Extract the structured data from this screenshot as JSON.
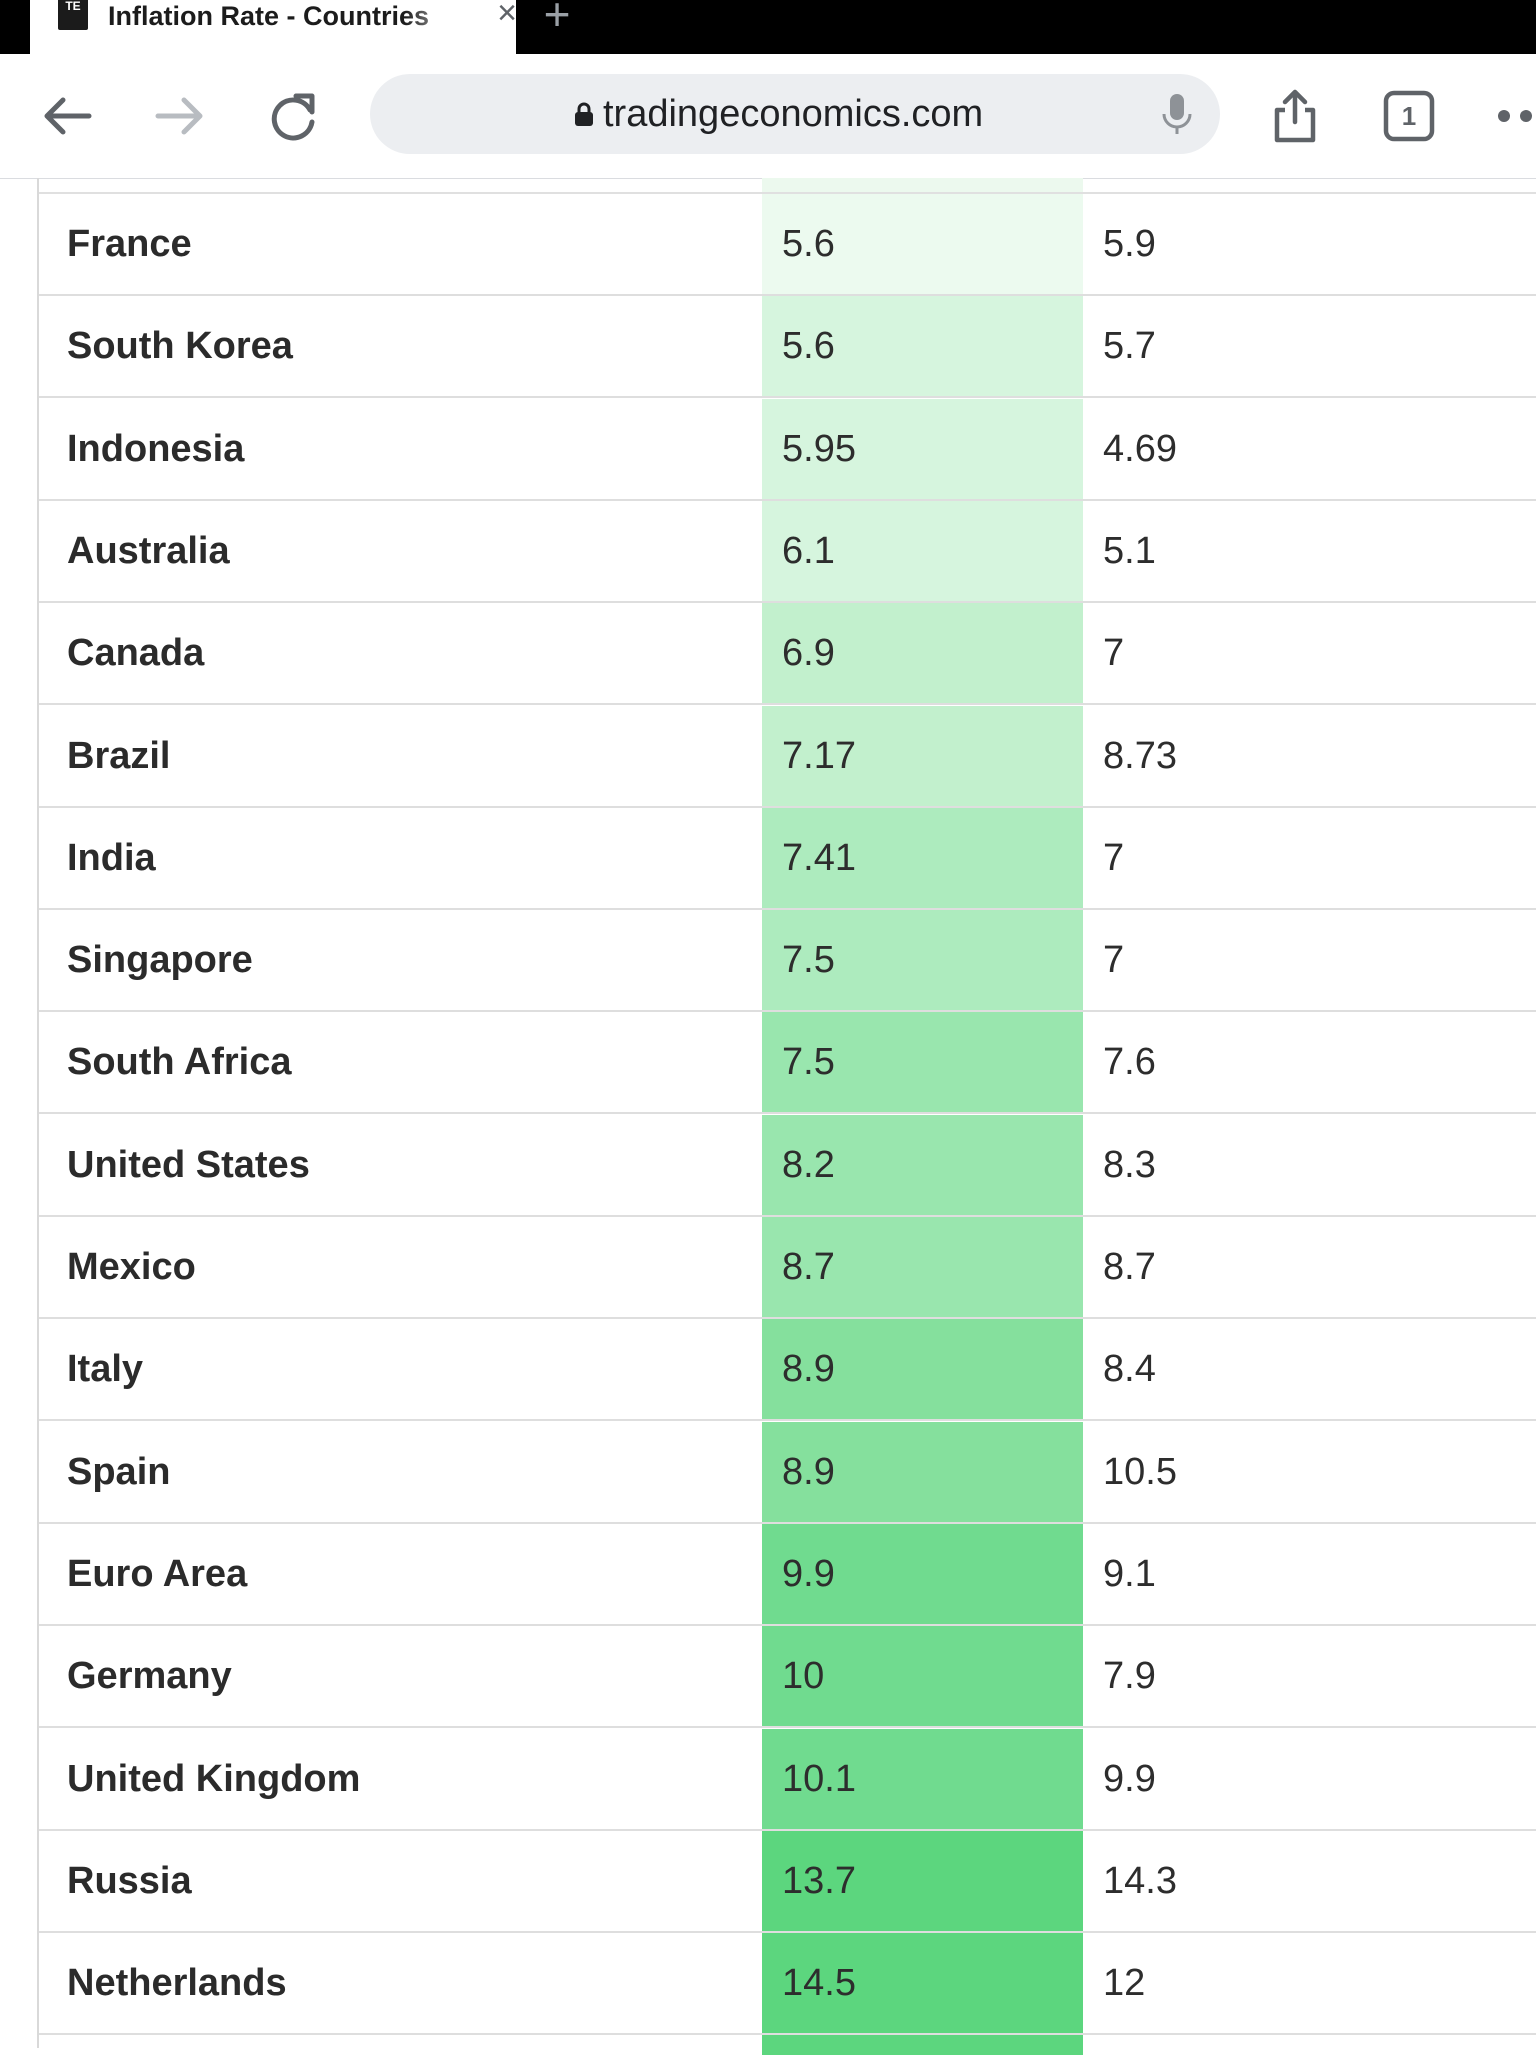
{
  "browser": {
    "tab": {
      "title": "Inflation Rate - Countries",
      "favicon_text": "TE"
    },
    "url": "tradingeconomics.com",
    "tab_count": "1"
  },
  "table": {
    "rows": [
      {
        "country": "France",
        "last": "5.6",
        "previous": "5.9",
        "color": "#ecfaef"
      },
      {
        "country": "South Korea",
        "last": "5.6",
        "previous": "5.7",
        "color": "#d6f5de"
      },
      {
        "country": "Indonesia",
        "last": "5.95",
        "previous": "4.69",
        "color": "#d6f5de"
      },
      {
        "country": "Australia",
        "last": "6.1",
        "previous": "5.1",
        "color": "#d6f5de"
      },
      {
        "country": "Canada",
        "last": "6.9",
        "previous": "7",
        "color": "#c2f0cd"
      },
      {
        "country": "Brazil",
        "last": "7.17",
        "previous": "8.73",
        "color": "#c2f0cd"
      },
      {
        "country": "India",
        "last": "7.41",
        "previous": "7",
        "color": "#adebbe"
      },
      {
        "country": "Singapore",
        "last": "7.5",
        "previous": "7",
        "color": "#adebbe"
      },
      {
        "country": "South Africa",
        "last": "7.5",
        "previous": "7.6",
        "color": "#99e6ae"
      },
      {
        "country": "United States",
        "last": "8.2",
        "previous": "8.3",
        "color": "#99e6ae"
      },
      {
        "country": "Mexico",
        "last": "8.7",
        "previous": "8.7",
        "color": "#99e6ae"
      },
      {
        "country": "Italy",
        "last": "8.9",
        "previous": "8.4",
        "color": "#85e09d"
      },
      {
        "country": "Spain",
        "last": "8.9",
        "previous": "10.5",
        "color": "#85e09d"
      },
      {
        "country": "Euro Area",
        "last": "9.9",
        "previous": "9.1",
        "color": "#70db8f"
      },
      {
        "country": "Germany",
        "last": "10",
        "previous": "7.9",
        "color": "#70db8f"
      },
      {
        "country": "United Kingdom",
        "last": "10.1",
        "previous": "9.9",
        "color": "#70db8f"
      },
      {
        "country": "Russia",
        "last": "13.7",
        "previous": "14.3",
        "color": "#5cd67e"
      },
      {
        "country": "Netherlands",
        "last": "14.5",
        "previous": "12",
        "color": "#5cd67e"
      }
    ]
  }
}
